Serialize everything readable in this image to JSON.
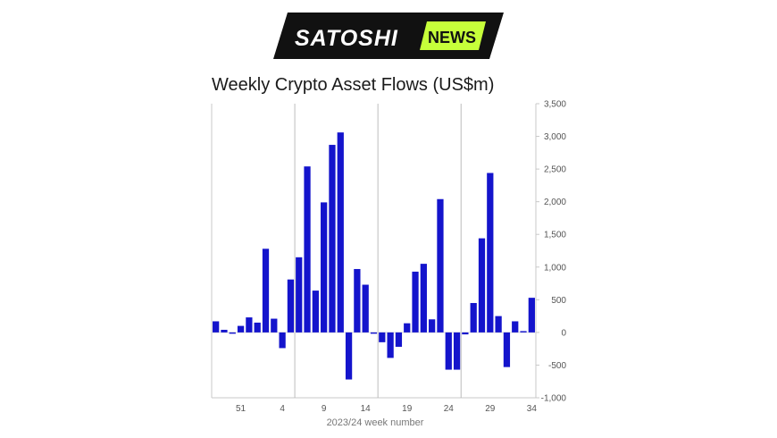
{
  "brand": {
    "name_part1": "SATOSHI",
    "name_part2": "NEWS",
    "colors": {
      "background": "#111111",
      "accent": "#c6ff3a",
      "text_light": "#ffffff",
      "text_dark": "#111111"
    }
  },
  "chart_data": {
    "type": "bar",
    "title": "Weekly Crypto Asset Flows (US$m)",
    "xlabel": "2023/24 week number",
    "ylabel": "",
    "ylim": [
      -1000,
      3500
    ],
    "yticks": [
      3500,
      3000,
      2500,
      2000,
      1500,
      1000,
      500,
      0,
      -500,
      -1000
    ],
    "ytick_labels": [
      "3,500",
      "3,000",
      "2,500",
      "2,000",
      "1,500",
      "1,000",
      "500",
      "0",
      "-500",
      "-1,000"
    ],
    "y_axis_position": "right",
    "grid": {
      "vertical_major_every": 10,
      "horizontal": false
    },
    "x_tick_labels": [
      {
        "index": 3,
        "label": "51"
      },
      {
        "index": 8,
        "label": "4"
      },
      {
        "index": 13,
        "label": "9"
      },
      {
        "index": 18,
        "label": "14"
      },
      {
        "index": 23,
        "label": "19"
      },
      {
        "index": 28,
        "label": "24"
      },
      {
        "index": 33,
        "label": "29"
      },
      {
        "index": 38,
        "label": "34"
      }
    ],
    "bar_color": "#1414cc",
    "values": [
      170,
      40,
      -20,
      100,
      230,
      150,
      1280,
      210,
      -240,
      810,
      1150,
      2540,
      640,
      1990,
      2870,
      3060,
      -720,
      970,
      730,
      -20,
      -150,
      -390,
      -220,
      140,
      930,
      1050,
      200,
      2040,
      -570,
      -570,
      -30,
      450,
      1440,
      2440,
      250,
      -530,
      170,
      20,
      530
    ]
  }
}
